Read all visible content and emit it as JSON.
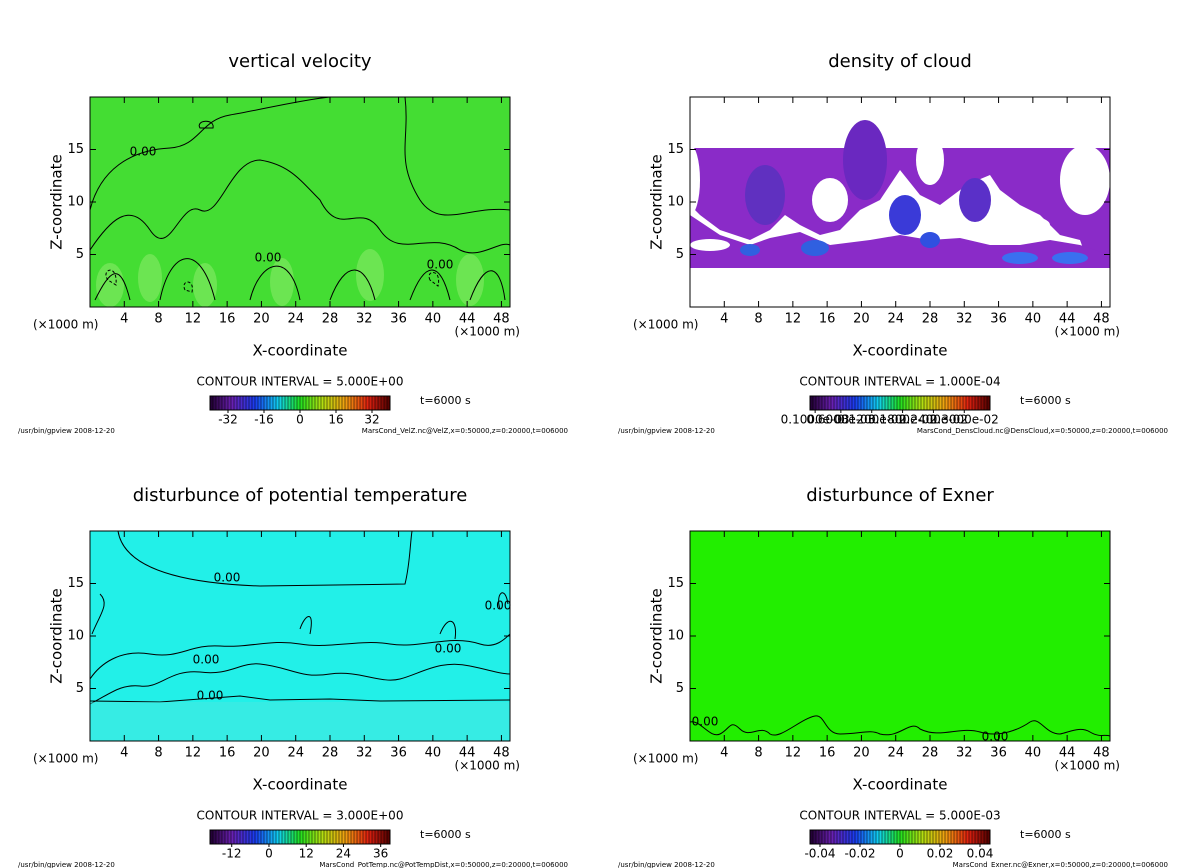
{
  "chart_data": [
    {
      "type": "contour",
      "title": "vertical velocity",
      "xlabel": "X-coordinate",
      "ylabel": "Z-coordinate",
      "x_unit": "(×1000 m)",
      "xlim": [
        0,
        49
      ],
      "xticks": [
        4,
        8,
        12,
        16,
        20,
        24,
        28,
        32,
        36,
        40,
        44,
        48
      ],
      "ylim": [
        0,
        20
      ],
      "yticks": [
        5,
        10,
        15
      ],
      "field_color": "#44dd33",
      "contour_interval": "CONTOUR INTERVAL = 5.000E+00",
      "colorbar": {
        "lim": [
          -40,
          40
        ],
        "ticks": [
          -32,
          -16,
          0,
          16,
          32
        ]
      },
      "time": "t=6000 s",
      "footer_left": "/usr/bin/gpview  2008-12-20",
      "footer_right": "MarsCond_VelZ.nc@VelZ,x=0:50000,z=0:20000,t=006000",
      "contour_labels": [
        "0.00",
        "0.00",
        "0.00"
      ]
    },
    {
      "type": "contour",
      "title": "density of cloud",
      "xlabel": "X-coordinate",
      "ylabel": "Z-coordinate",
      "x_unit": "(×1000 m)",
      "xlim": [
        0,
        49
      ],
      "xticks": [
        4,
        8,
        12,
        16,
        20,
        24,
        28,
        32,
        36,
        40,
        44,
        48
      ],
      "ylim": [
        0,
        20
      ],
      "yticks": [
        5,
        10,
        15
      ],
      "field_color": "#8a2bc8",
      "contour_interval": "CONTOUR INTERVAL = 1.000E-04",
      "colorbar": {
        "lim": [
          0,
          0.0035
        ],
        "ticks": [
          {
            "value": 0.0001,
            "label": "0.1000e-03"
          },
          {
            "value": 0.0006,
            "label": "0.6000e-03"
          },
          {
            "value": 0.0012,
            "label": "0.1200e-02"
          },
          {
            "value": 0.0018,
            "label": "0.1800e-02"
          },
          {
            "value": 0.0024,
            "label": "0.2400e-02"
          },
          {
            "value": 0.003,
            "label": "0.3000e-02"
          }
        ]
      },
      "time": "t=6000 s",
      "footer_left": "/usr/bin/gpview  2008-12-20",
      "footer_right": "MarsCond_DensCloud.nc@DensCloud,x=0:50000,z=0:20000,t=006000",
      "contour_labels": []
    },
    {
      "type": "contour",
      "title": "disturbunce of potential temperature",
      "xlabel": "X-coordinate",
      "ylabel": "Z-coordinate",
      "x_unit": "(×1000 m)",
      "xlim": [
        0,
        49
      ],
      "xticks": [
        4,
        8,
        12,
        16,
        20,
        24,
        28,
        32,
        36,
        40,
        44,
        48
      ],
      "ylim": [
        0,
        20
      ],
      "yticks": [
        5,
        10,
        15
      ],
      "field_color": "#22f0e8",
      "contour_interval": "CONTOUR INTERVAL = 3.000E+00",
      "colorbar": {
        "lim": [
          -19,
          39
        ],
        "ticks": [
          -12,
          0,
          12,
          24,
          36
        ]
      },
      "time": "t=6000 s",
      "footer_left": "/usr/bin/gpview  2008-12-20",
      "footer_right": "MarsCond_PotTemp.nc@PotTempDist,x=0:50000,z=0:20000,t=006000",
      "contour_labels": [
        "0.00",
        "0.00",
        "0.00",
        "0.00",
        "0.00"
      ]
    },
    {
      "type": "contour",
      "title": "disturbunce of Exner",
      "xlabel": "X-coordinate",
      "ylabel": "Z-coordinate",
      "x_unit": "(×1000 m)",
      "xlim": [
        0,
        49
      ],
      "xticks": [
        4,
        8,
        12,
        16,
        20,
        24,
        28,
        32,
        36,
        40,
        44,
        48
      ],
      "ylim": [
        0,
        20
      ],
      "yticks": [
        5,
        10,
        15
      ],
      "field_color": "#22ee00",
      "contour_interval": "CONTOUR INTERVAL = 5.000E-03",
      "colorbar": {
        "lim": [
          -0.045,
          0.045
        ],
        "ticks": [
          -0.04,
          -0.02,
          0,
          0.02,
          0.04
        ]
      },
      "time": "t=6000 s",
      "footer_left": "/usr/bin/gpview  2008-12-20",
      "footer_right": "MarsCond_Exner.nc@Exner,x=0:50000,z=0:20000,t=006000",
      "contour_labels": [
        "0.00",
        "0.00"
      ]
    }
  ]
}
